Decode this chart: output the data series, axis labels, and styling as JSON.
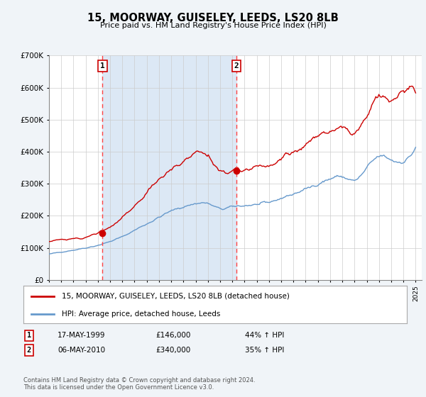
{
  "title": "15, MOORWAY, GUISELEY, LEEDS, LS20 8LB",
  "subtitle": "Price paid vs. HM Land Registry's House Price Index (HPI)",
  "background_color": "#f0f4f8",
  "plot_bg_color": "#ffffff",
  "legend_label_red": "15, MOORWAY, GUISELEY, LEEDS, LS20 8LB (detached house)",
  "legend_label_blue": "HPI: Average price, detached house, Leeds",
  "footer": "Contains HM Land Registry data © Crown copyright and database right 2024.\nThis data is licensed under the Open Government Licence v3.0.",
  "transactions": [
    {
      "label": "1",
      "date": "17-MAY-1999",
      "price": 146000,
      "pct": "44% ↑ HPI",
      "year": 1999.38
    },
    {
      "label": "2",
      "date": "06-MAY-2010",
      "price": 340000,
      "pct": "35% ↑ HPI",
      "year": 2010.35
    }
  ],
  "ylim": [
    0,
    700000
  ],
  "yticks": [
    0,
    100000,
    200000,
    300000,
    400000,
    500000,
    600000,
    700000
  ],
  "xlim_start": 1995,
  "xlim_end": 2025.5,
  "red_color": "#cc0000",
  "blue_color": "#6699cc",
  "vline_color": "#ff4444",
  "shade_color": "#dce8f5"
}
